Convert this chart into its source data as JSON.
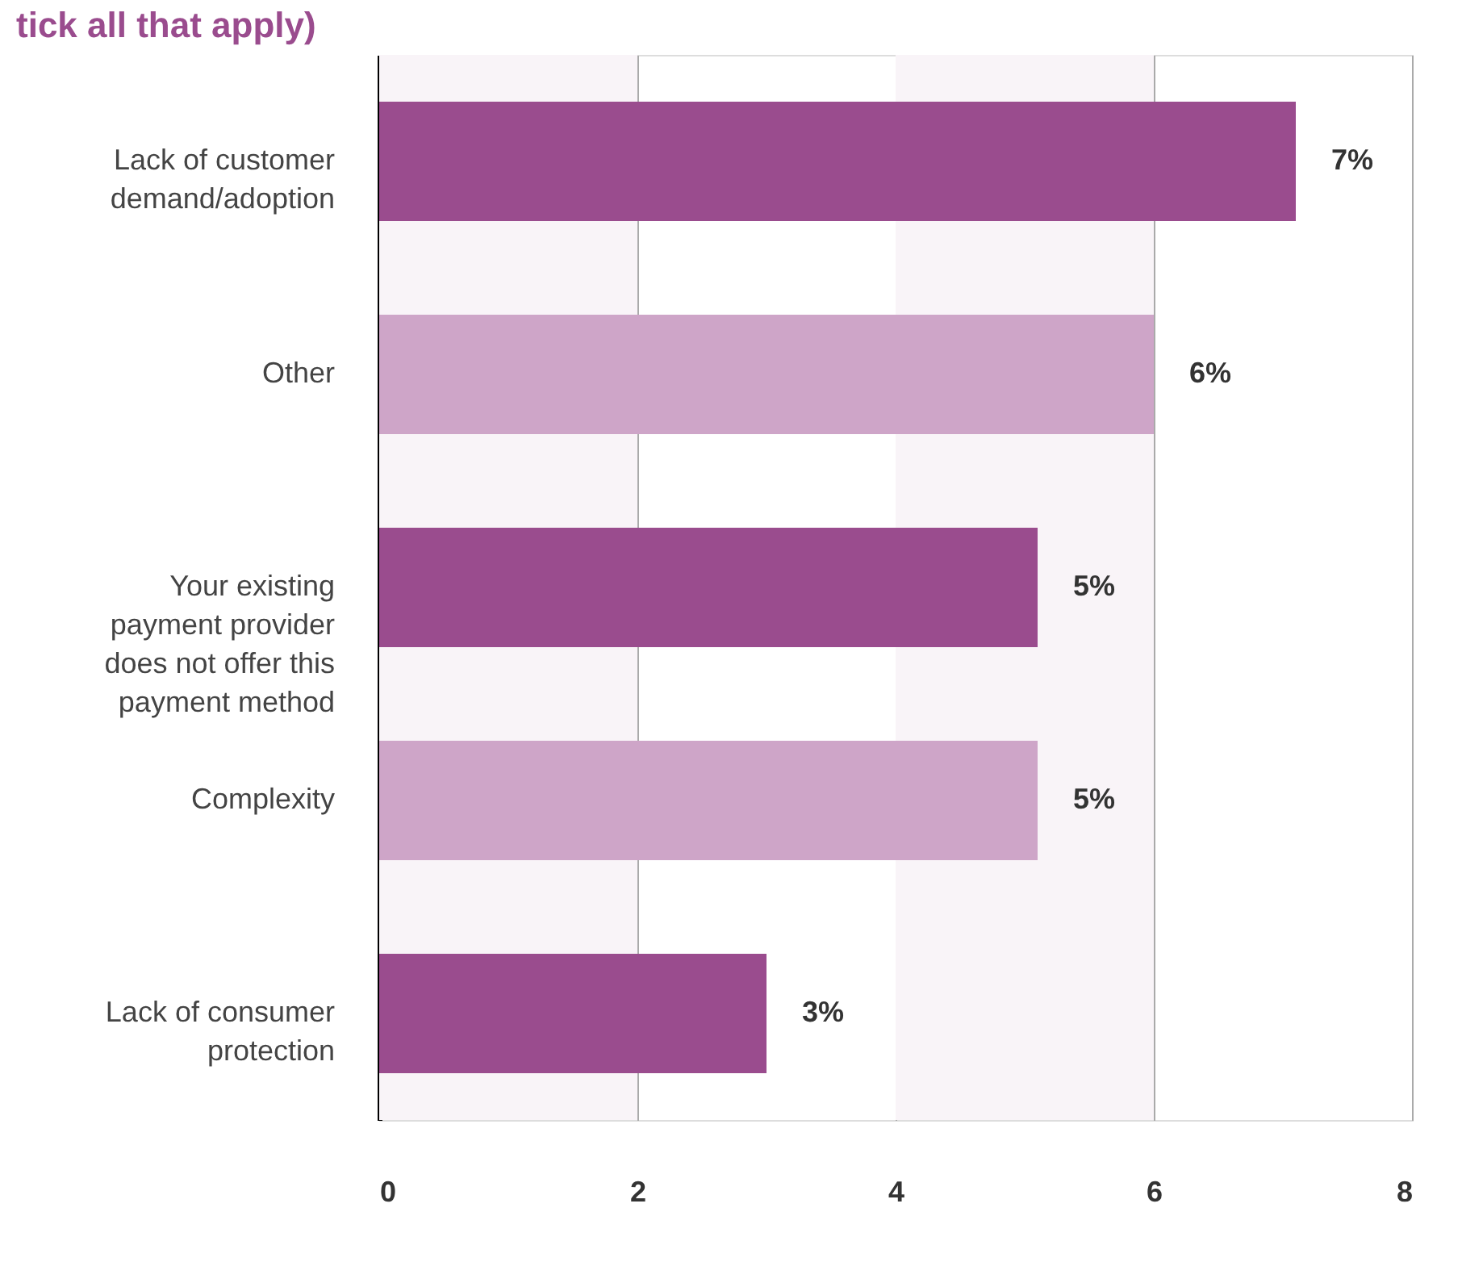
{
  "chart_data": {
    "type": "bar",
    "orientation": "horizontal",
    "title": "tick all that apply)",
    "categories": [
      "Lack of customer demand/adoption",
      "Other",
      "Your existing payment provider does not offer this payment method",
      "Complexity",
      "Lack of consumer protection"
    ],
    "values": [
      7.1,
      6.0,
      5.1,
      5.1,
      3.0
    ],
    "colors": [
      "#9a4c8e",
      "#cea5c8",
      "#9a4c8e",
      "#cea5c8",
      "#9a4c8e"
    ],
    "value_labels": [
      "7%",
      "6%",
      "5%",
      "5%",
      "3%"
    ],
    "xlim": [
      0,
      8
    ],
    "xticks": [
      0,
      2,
      4,
      6,
      8
    ],
    "grid": "x",
    "bands": [
      {
        "axis": "x",
        "from": 0,
        "to": 2,
        "color": "#f9f4f8"
      },
      {
        "axis": "x",
        "from": 4,
        "to": 6,
        "color": "#f9f4f8"
      }
    ]
  }
}
